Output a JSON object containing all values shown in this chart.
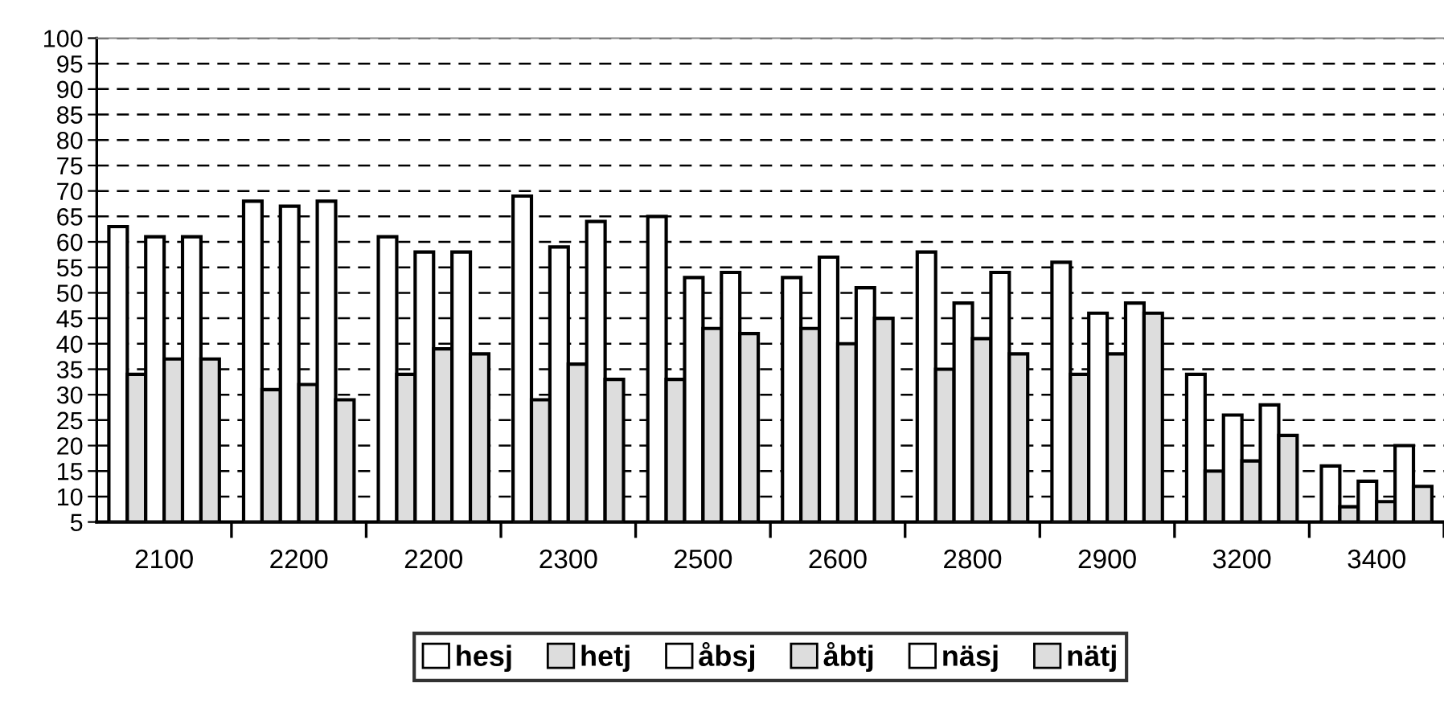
{
  "chart_data": {
    "type": "bar",
    "categories": [
      "2100",
      "2200",
      "2200",
      "2300",
      "2500",
      "2600",
      "2800",
      "2900",
      "3200",
      "3400"
    ],
    "series": [
      {
        "name": "hesj",
        "color": "#ffffff",
        "values": [
          63,
          68,
          61,
          69,
          65,
          53,
          58,
          56,
          34,
          16
        ]
      },
      {
        "name": "hetj",
        "color": "#dddddd",
        "values": [
          34,
          31,
          34,
          29,
          33,
          43,
          35,
          34,
          15,
          8
        ]
      },
      {
        "name": "åbsj",
        "color": "#ffffff",
        "values": [
          61,
          67,
          58,
          59,
          53,
          57,
          48,
          46,
          26,
          13
        ]
      },
      {
        "name": "åbtj",
        "color": "#dddddd",
        "values": [
          37,
          32,
          39,
          36,
          43,
          40,
          41,
          38,
          17,
          9
        ]
      },
      {
        "name": "näsj",
        "color": "#ffffff",
        "values": [
          61,
          68,
          58,
          64,
          54,
          51,
          54,
          48,
          28,
          20
        ]
      },
      {
        "name": "nätj",
        "color": "#dddddd",
        "values": [
          37,
          29,
          38,
          33,
          42,
          45,
          38,
          46,
          22,
          12
        ]
      }
    ],
    "ylim": [
      5,
      100
    ],
    "yticks": [
      5,
      10,
      15,
      20,
      25,
      30,
      35,
      40,
      45,
      50,
      55,
      60,
      65,
      70,
      75,
      80,
      85,
      90,
      95,
      100
    ],
    "grid": "y",
    "legend": "bottom"
  }
}
